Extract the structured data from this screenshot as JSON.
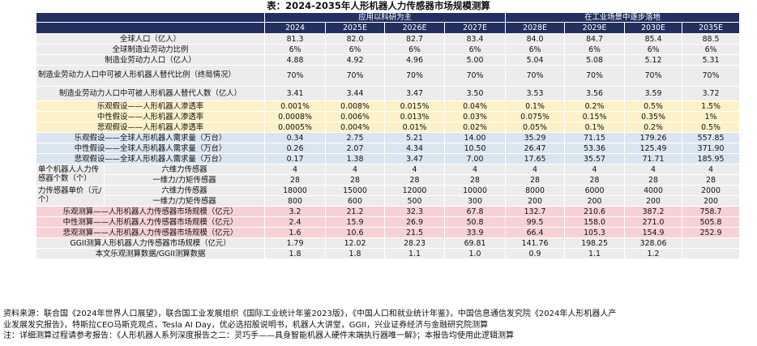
{
  "title": "表：2024-2035年人形机器人力传感器市场规模测算",
  "groups": [
    "应用以科研为主",
    "在工业场景中逐步落地"
  ],
  "years": [
    "2024",
    "2025E",
    "2026E",
    "2027E",
    "2028E",
    "2029E",
    "2030E",
    "2035E"
  ],
  "rows_basic": [
    {
      "label": "全球人口（亿人）",
      "values": [
        "81.3",
        "82.0",
        "82.7",
        "83.4",
        "84.0",
        "84.7",
        "85.4",
        "88.5"
      ]
    },
    {
      "label": "全球制造业劳动力比例",
      "values": [
        "6%",
        "6%",
        "6%",
        "6%",
        "6%",
        "6%",
        "6%",
        "6%"
      ]
    },
    {
      "label": "制造业劳动力人口（亿人）",
      "values": [
        "4.88",
        "4.92",
        "4.96",
        "5.00",
        "5.04",
        "5.08",
        "5.12",
        "5.31"
      ]
    },
    {
      "label": "制造业劳动力人口中可被人形机器人替代比例（终局情况）",
      "values": [
        "70%",
        "70%",
        "70%",
        "70%",
        "70%",
        "70%",
        "70%",
        "70%"
      ]
    },
    {
      "label": "制造业劳动力人口中可被人形机器人替代人数（亿人）",
      "values": [
        "3.41",
        "3.44",
        "3.47",
        "3.50",
        "3.53",
        "3.56",
        "3.59",
        "3.72"
      ]
    }
  ],
  "rows_penetration": [
    {
      "label": "乐观假设——人形机器人渗透率",
      "values": [
        "0.001%",
        "0.008%",
        "0.015%",
        "0.04%",
        "0.1%",
        "0.2%",
        "0.5%",
        "1.5%"
      ]
    },
    {
      "label": "中性假设——人形机器人渗透率",
      "values": [
        "0.0008%",
        "0.006%",
        "0.013%",
        "0.03%",
        "0.075%",
        "0.15%",
        "0.35%",
        "1%"
      ]
    },
    {
      "label": "悲观假设——人形机器人渗透率",
      "values": [
        "0.0005%",
        "0.004%",
        "0.01%",
        "0.02%",
        "0.05%",
        "0.1%",
        "0.2%",
        "0.5%"
      ]
    }
  ],
  "rows_demand": [
    {
      "label": "乐观假设——全球人形机器人需求量（万台）",
      "values": [
        "0.34",
        "2.75",
        "5.21",
        "14.00",
        "35.29",
        "71.15",
        "179.26",
        "557.85"
      ]
    },
    {
      "label": "中性假设——全球人形机器人需求量（万台）",
      "values": [
        "0.26",
        "2.07",
        "4.34",
        "10.50",
        "26.47",
        "53.36",
        "125.49",
        "371.90"
      ]
    },
    {
      "label": "悲观假设——全球人形机器人需求量（万台）",
      "values": [
        "0.17",
        "1.38",
        "3.47",
        "7.00",
        "17.65",
        "35.57",
        "71.71",
        "185.95"
      ]
    }
  ],
  "sensor_count": {
    "group_label": "单个机器人人力传感器个数（个）",
    "rows": [
      {
        "label": "六维力传感器",
        "values": [
          "4",
          "4",
          "4",
          "4",
          "4",
          "4",
          "4",
          "4"
        ]
      },
      {
        "label": "一维力/力矩传感器",
        "values": [
          "28",
          "28",
          "28",
          "28",
          "28",
          "28",
          "28",
          "28"
        ]
      }
    ]
  },
  "sensor_price": {
    "group_label": "力传感器单价（元/个）",
    "rows": [
      {
        "label": "六维力传感器",
        "values": [
          "18000",
          "15000",
          "12000",
          "10000",
          "8000",
          "6000",
          "4000",
          "2000"
        ]
      },
      {
        "label": "一维力/力矩传感器",
        "values": [
          "800",
          "600",
          "500",
          "300",
          "200",
          "200",
          "200",
          "200"
        ]
      }
    ]
  },
  "rows_market": [
    {
      "label": "乐观测算——人形机器人力传感器市场规模（亿元）",
      "values": [
        "3.2",
        "21.2",
        "32.3",
        "67.8",
        "132.7",
        "210.6",
        "387.2",
        "758.7"
      ]
    },
    {
      "label": "中性测算——人形机器人力传感器市场规模（亿元）",
      "values": [
        "2.4",
        "15.9",
        "26.9",
        "50.8",
        "99.5",
        "158.0",
        "271.0",
        "505.8"
      ]
    },
    {
      "label": "悲观测算——人形机器人力传感器市场规模（亿元）",
      "values": [
        "1.6",
        "10.6",
        "21.5",
        "33.9",
        "66.4",
        "105.3",
        "154.9",
        "252.9"
      ]
    }
  ],
  "rows_ggii": [
    {
      "label": "GGII测算人形机器人力传感器市场规模（亿元）",
      "values": [
        "1.79",
        "12.02",
        "28.23",
        "69.81",
        "141.76",
        "198.25",
        "328.06",
        ""
      ]
    },
    {
      "label": "本文乐观测算数据/GGII测算数据",
      "values": [
        "1.8",
        "1.8",
        "1.1",
        "1.0",
        "0.9",
        "1.1",
        "1.2",
        ""
      ]
    }
  ],
  "notes": [
    "资料来源：联合国《2024年世界人口展望》，联合国工业发展组织《国际工业统计年鉴2023版》，《中国人口和就业统计年鉴》，中国信息通信发究院《2024年人形机器人产",
    "业发展发究报告》，特斯拉CEO马斯克观点，Tesla AI Day，优必选招股说明书，机器人大讲堂，GGII，兴业证券经济与金融研究院测算",
    "注：详细测算过程请参考报告：《人形机器人系列深度报告之二：灵巧手——具身智能机器人硬件末端执行器唯一解》；本报告均使用此逻辑测算"
  ]
}
